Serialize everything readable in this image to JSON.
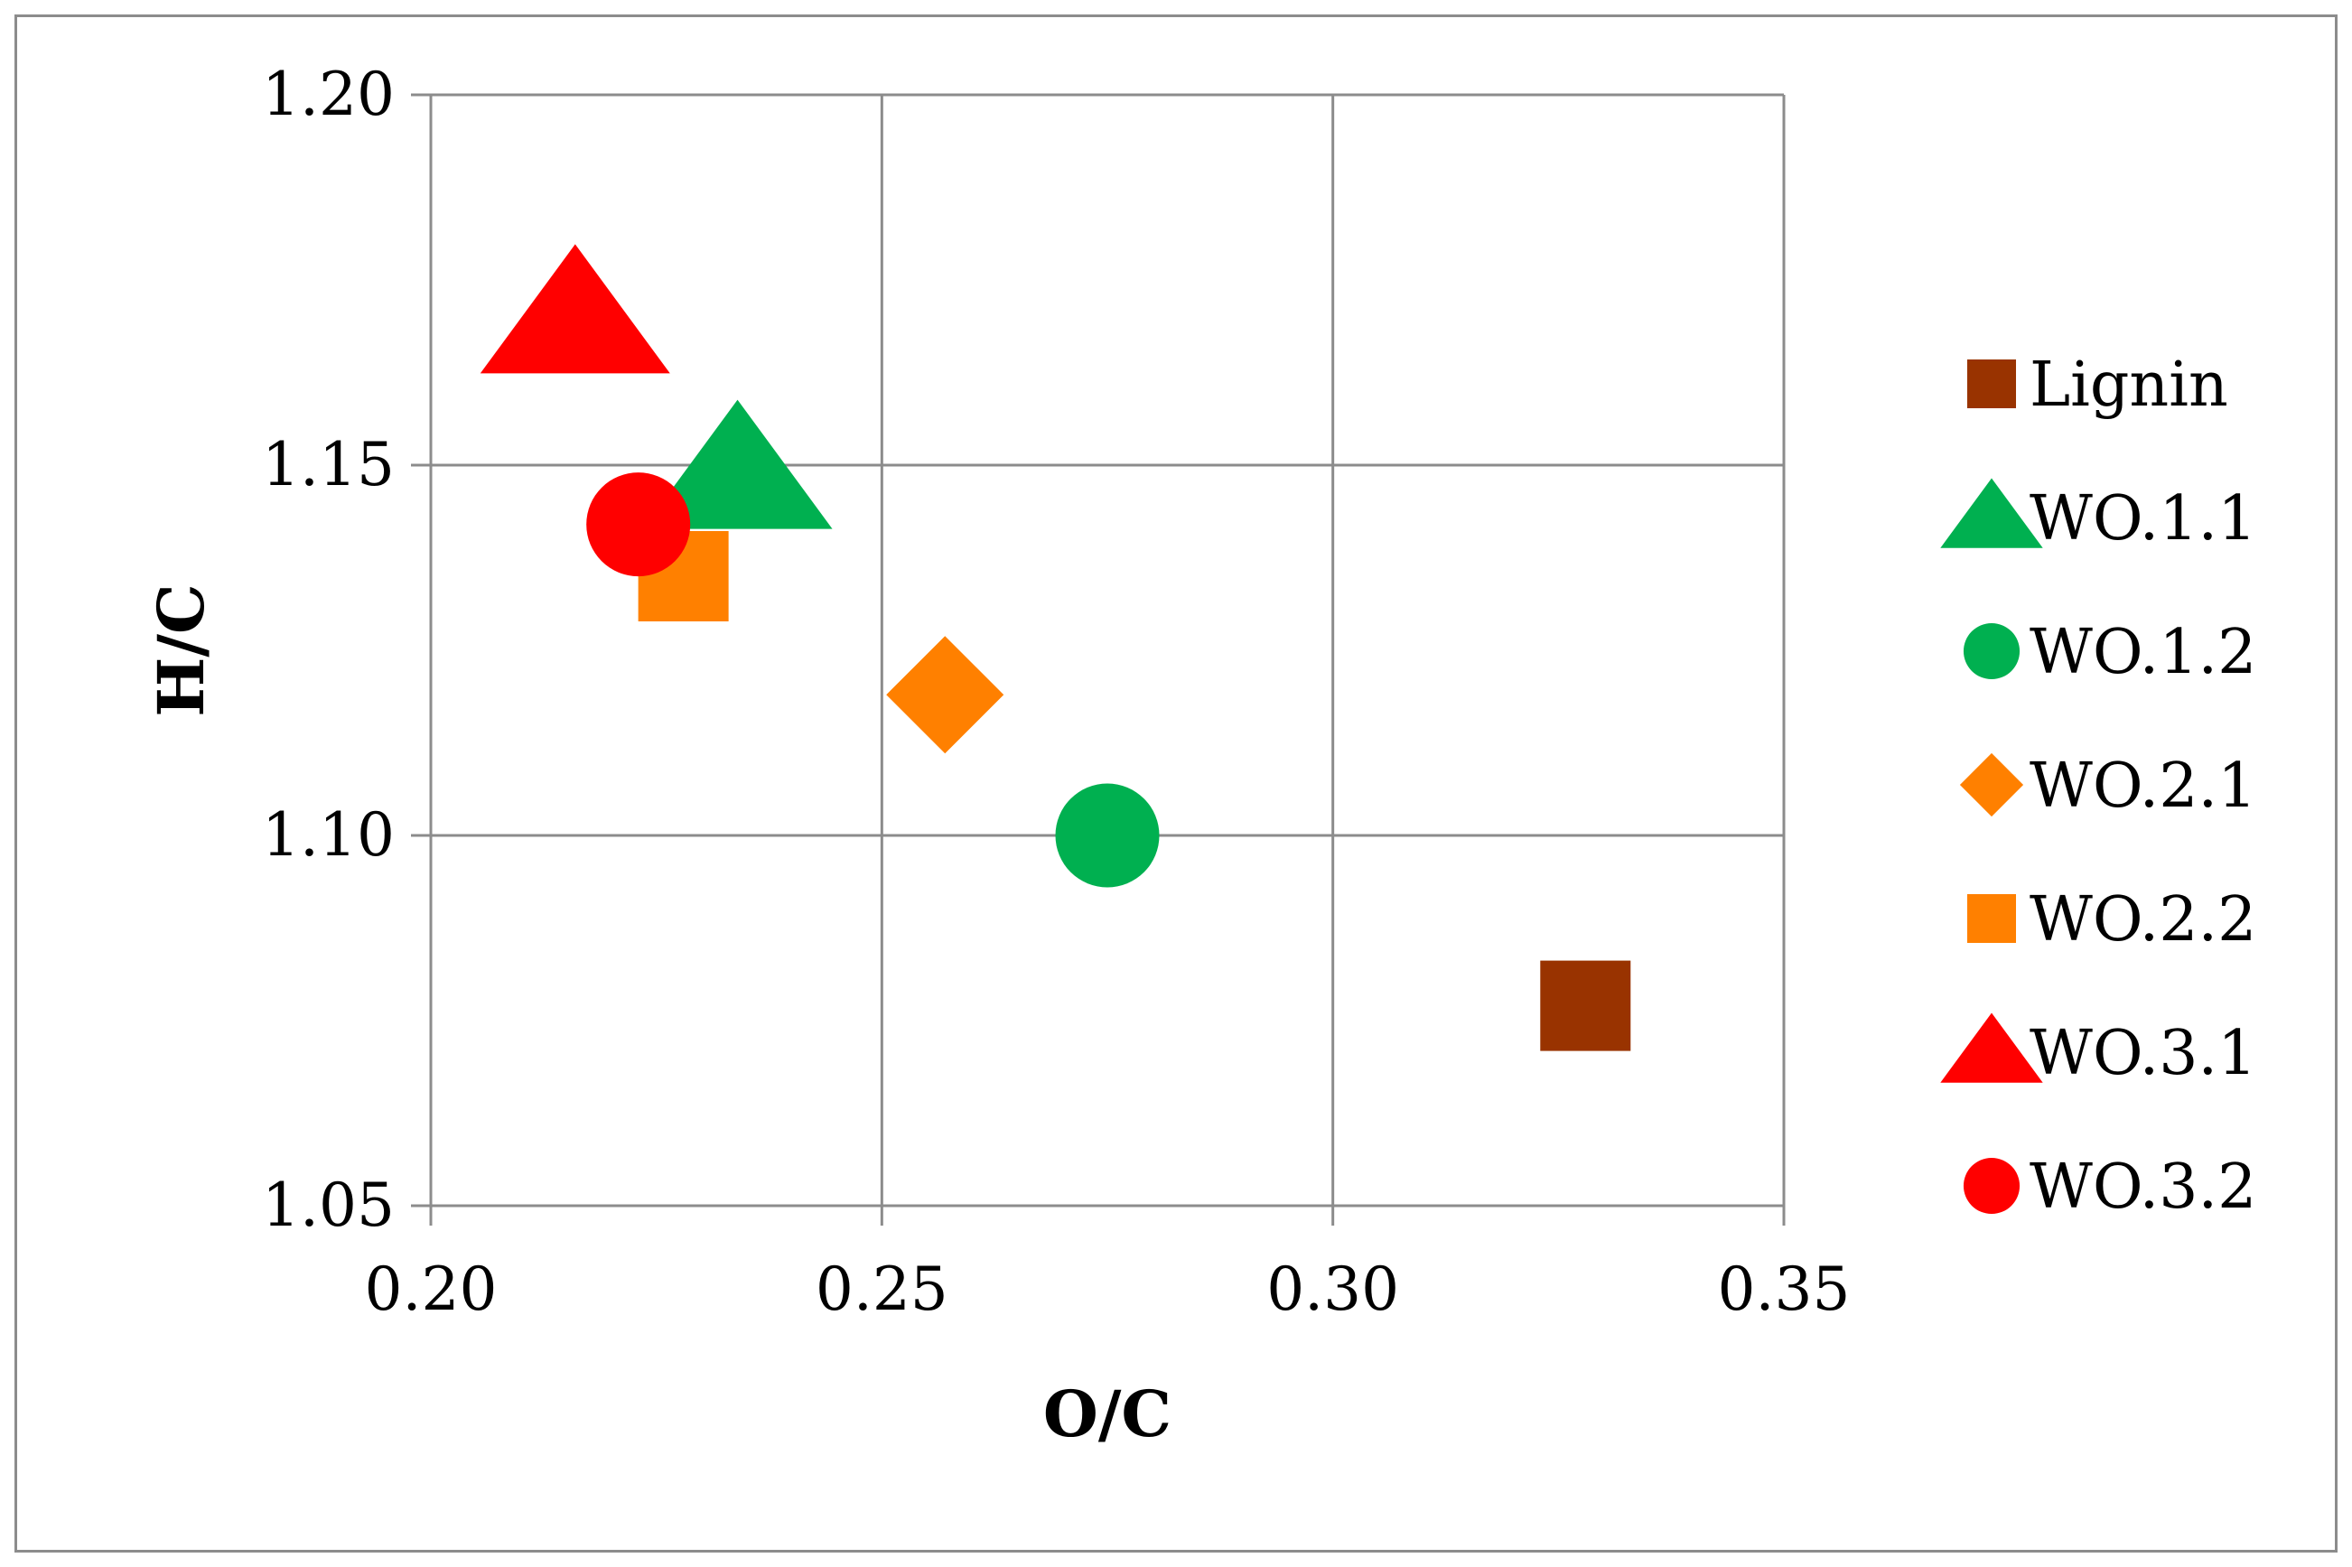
{
  "chart_data": {
    "type": "scatter",
    "xlabel": "O/C",
    "ylabel": "H/C",
    "xlim": [
      0.2,
      0.35
    ],
    "ylim": [
      1.05,
      1.2
    ],
    "xticks": [
      "0.20",
      "0.25",
      "0.30",
      "0.35"
    ],
    "yticks": [
      "1.05",
      "1.10",
      "1.15",
      "1.20"
    ],
    "grid": true,
    "legend_position": "right",
    "series": [
      {
        "name": "Lignin",
        "marker": "square",
        "color": "#993300",
        "points": [
          {
            "x": 0.328,
            "y": 1.077
          }
        ]
      },
      {
        "name": "WO.1.1",
        "marker": "triangle",
        "color": "#00b050",
        "points": [
          {
            "x": 0.234,
            "y": 1.149
          }
        ]
      },
      {
        "name": "WO.1.2",
        "marker": "circle",
        "color": "#00b050",
        "points": [
          {
            "x": 0.275,
            "y": 1.1
          }
        ]
      },
      {
        "name": "WO.2.1",
        "marker": "diamond",
        "color": "#ff8000",
        "points": [
          {
            "x": 0.257,
            "y": 1.119
          }
        ]
      },
      {
        "name": "WO.2.2",
        "marker": "square",
        "color": "#ff8000",
        "points": [
          {
            "x": 0.228,
            "y": 1.135
          }
        ]
      },
      {
        "name": "WO.3.1",
        "marker": "triangle",
        "color": "#ff0000",
        "points": [
          {
            "x": 0.216,
            "y": 1.17
          }
        ]
      },
      {
        "name": "WO.3.2",
        "marker": "circle",
        "color": "#ff0000",
        "points": [
          {
            "x": 0.223,
            "y": 1.142
          }
        ]
      }
    ]
  }
}
